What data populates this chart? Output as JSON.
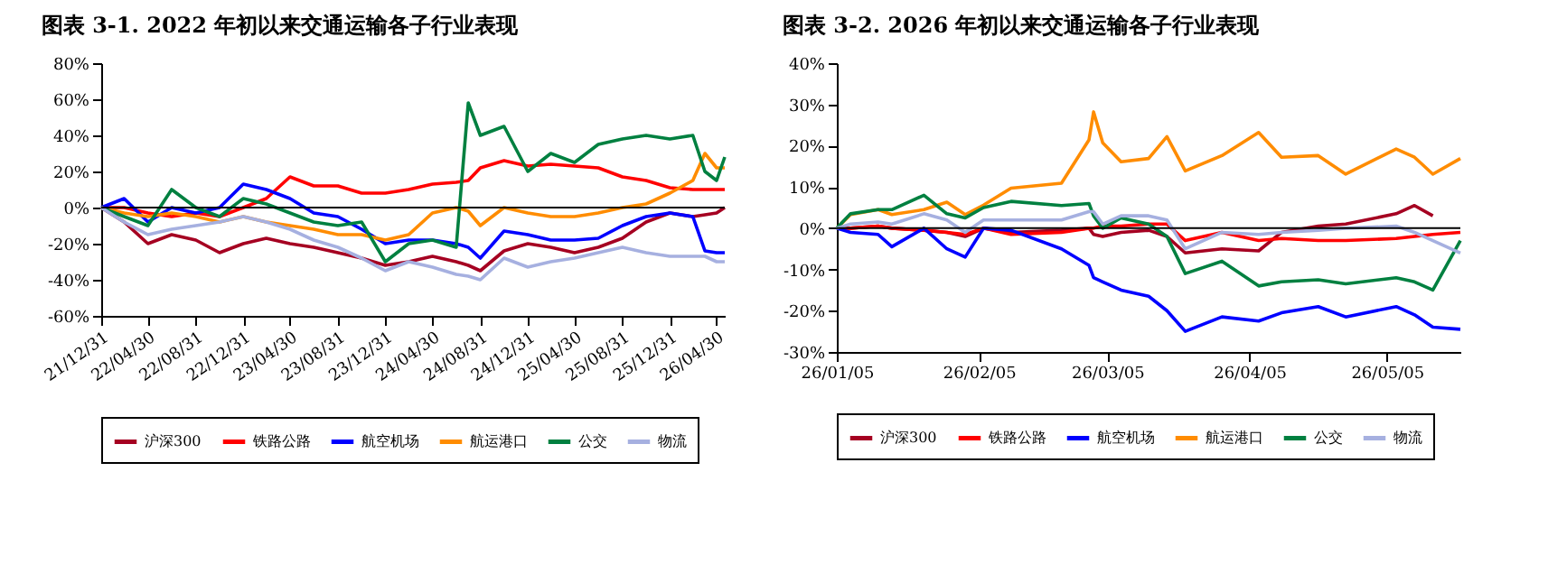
{
  "chart_data": [
    {
      "type": "line",
      "title": "图表 3-1. 2022 年初以来交通运输各子行业表现",
      "x": [
        "2021-12-31",
        "2022-02-28",
        "2022-04-30",
        "2022-06-30",
        "2022-08-31",
        "2022-10-31",
        "2022-12-31",
        "2023-02-28",
        "2023-04-30",
        "2023-06-30",
        "2023-08-31",
        "2023-10-31",
        "2023-12-31",
        "2024-02-29",
        "2024-04-30",
        "2024-06-30",
        "2024-07-31",
        "2024-08-31",
        "2024-10-31",
        "2024-12-31",
        "2025-02-28",
        "2025-04-30",
        "2025-06-30",
        "2025-08-31",
        "2025-10-31",
        "2025-12-31",
        "2026-02-28",
        "2026-03-31",
        "2026-04-30",
        "2026-05-21"
      ],
      "series": [
        {
          "name": "沪深300",
          "color": "#a50021",
          "values": [
            0,
            -8,
            -20,
            -15,
            -18,
            -25,
            -20,
            -17,
            -20,
            -22,
            -25,
            -28,
            -32,
            -30,
            -27,
            -30,
            -32,
            -35,
            -24,
            -20,
            -22,
            -25,
            -22,
            -17,
            -8,
            -3,
            -5,
            -4,
            -3,
            0
          ]
        },
        {
          "name": "铁路公路",
          "color": "#ff0000",
          "values": [
            0,
            0,
            -3,
            -5,
            -3,
            -5,
            0,
            5,
            17,
            12,
            12,
            8,
            8,
            10,
            13,
            14,
            15,
            22,
            26,
            23,
            24,
            23,
            22,
            17,
            15,
            11,
            10,
            10,
            10,
            10
          ]
        },
        {
          "name": "航空机场",
          "color": "#0000ff",
          "values": [
            0,
            5,
            -8,
            0,
            -3,
            0,
            13,
            10,
            5,
            -3,
            -5,
            -12,
            -20,
            -18,
            -18,
            -20,
            -22,
            -28,
            -13,
            -15,
            -18,
            -18,
            -17,
            -10,
            -5,
            -3,
            -5,
            -24,
            -25,
            -25
          ]
        },
        {
          "name": "航运港口",
          "color": "#ff8c00",
          "values": [
            0,
            -3,
            -5,
            -3,
            -5,
            -8,
            -5,
            -8,
            -10,
            -12,
            -15,
            -15,
            -18,
            -15,
            -3,
            0,
            -2,
            -10,
            0,
            -3,
            -5,
            -5,
            -3,
            0,
            2,
            8,
            15,
            30,
            22,
            22
          ]
        },
        {
          "name": "公交",
          "color": "#008040",
          "values": [
            0,
            -5,
            -10,
            10,
            0,
            -5,
            5,
            2,
            -3,
            -8,
            -10,
            -8,
            -30,
            -20,
            -18,
            -22,
            58,
            40,
            45,
            20,
            30,
            25,
            35,
            38,
            40,
            38,
            40,
            20,
            15,
            28
          ]
        },
        {
          "name": "物流",
          "color": "#a6b0e0",
          "values": [
            0,
            -8,
            -15,
            -12,
            -10,
            -8,
            -5,
            -8,
            -12,
            -18,
            -22,
            -28,
            -35,
            -30,
            -33,
            -37,
            -38,
            -40,
            -28,
            -33,
            -30,
            -28,
            -25,
            -22,
            -25,
            -27,
            -27,
            -27,
            -30,
            -30
          ]
        }
      ],
      "xlim": [
        "2021-12-31",
        "2026-05-21"
      ],
      "xticks": [
        {
          "value": "2021-12-31",
          "label": "21/12/31"
        },
        {
          "value": "2022-04-30",
          "label": "22/04/30"
        },
        {
          "value": "2022-08-31",
          "label": "22/08/31"
        },
        {
          "value": "2022-12-31",
          "label": "22/12/31"
        },
        {
          "value": "2023-04-30",
          "label": "23/04/30"
        },
        {
          "value": "2023-08-31",
          "label": "23/08/31"
        },
        {
          "value": "2023-12-31",
          "label": "23/12/31"
        },
        {
          "value": "2024-04-30",
          "label": "24/04/30"
        },
        {
          "value": "2024-08-31",
          "label": "24/08/31"
        },
        {
          "value": "2024-12-31",
          "label": "24/12/31"
        },
        {
          "value": "2025-04-30",
          "label": "25/04/30"
        },
        {
          "value": "2025-08-31",
          "label": "25/08/31"
        },
        {
          "value": "2025-12-31",
          "label": "25/12/31"
        },
        {
          "value": "2026-04-30",
          "label": "26/04/30"
        }
      ],
      "ylim": [
        -60,
        80
      ],
      "yticks": [
        {
          "value": -60,
          "label": "-60%"
        },
        {
          "value": -40,
          "label": "-40%"
        },
        {
          "value": -20,
          "label": "-20%"
        },
        {
          "value": 0,
          "label": "0%"
        },
        {
          "value": 20,
          "label": "20%"
        },
        {
          "value": 40,
          "label": "40%"
        },
        {
          "value": 60,
          "label": "60%"
        },
        {
          "value": 80,
          "label": "80%"
        }
      ],
      "ref_lines": [
        {
          "axis": "y",
          "value": 0,
          "color": "#000000"
        }
      ],
      "grid": false,
      "legend": "bottom"
    },
    {
      "type": "line",
      "title": "图表 3-2. 2026 年初以来交通运输各子行业表现",
      "x": [
        "2026-01-05",
        "2026-01-08",
        "2026-01-14",
        "2026-01-17",
        "2026-01-24",
        "2026-01-29",
        "2026-02-02",
        "2026-02-06",
        "2026-02-12",
        "2026-02-23",
        "2026-03-01",
        "2026-03-02",
        "2026-03-04",
        "2026-03-08",
        "2026-03-14",
        "2026-03-18",
        "2026-03-22",
        "2026-03-30",
        "2026-04-07",
        "2026-04-12",
        "2026-04-20",
        "2026-04-26",
        "2026-05-07",
        "2026-05-11",
        "2026-05-15",
        "2026-05-21"
      ],
      "series": [
        {
          "name": "沪深300",
          "color": "#a50021",
          "values": [
            0,
            0,
            0.5,
            0,
            -0.5,
            -1,
            -2,
            0,
            -1,
            -0.5,
            0,
            -1.5,
            -2,
            -1,
            -0.5,
            -2,
            -6,
            -5,
            -5.5,
            -1,
            0.5,
            1,
            3.5,
            5.5,
            3,
            null
          ]
        },
        {
          "name": "铁路公路",
          "color": "#ff0000",
          "values": [
            0,
            0,
            0.5,
            0,
            -0.5,
            -1,
            -1.5,
            0,
            -1.5,
            -1,
            0,
            0,
            0.5,
            0.5,
            1,
            1,
            -3,
            -1,
            -3,
            -2.5,
            -3,
            -3,
            -2.5,
            -2,
            -1.5,
            -1
          ]
        },
        {
          "name": "航空机场",
          "color": "#0000ff",
          "values": [
            0,
            -1,
            -1.5,
            -4.5,
            0,
            -5,
            -7,
            0,
            -0.5,
            -5,
            -9,
            -12,
            -13,
            -15,
            -16.5,
            -20,
            -25,
            -21.5,
            -22.5,
            -20.5,
            -19,
            -21.5,
            -19,
            -21,
            -24,
            -24.5
          ]
        },
        {
          "name": "航运港口",
          "color": "#ff8c00",
          "values": [
            0,
            3.3,
            4.5,
            3.3,
            4.5,
            6.3,
            3.3,
            5.6,
            9.7,
            10.9,
            21.4,
            28.2,
            20.7,
            16.1,
            16.9,
            22.2,
            13.9,
            17.6,
            23.2,
            17.2,
            17.6,
            13.1,
            19.2,
            17.2,
            13.1,
            16.9
          ]
        },
        {
          "name": "公交",
          "color": "#008040",
          "values": [
            0,
            3.5,
            4.5,
            4.5,
            8,
            3.5,
            2.5,
            5,
            6.5,
            5.5,
            6,
            3,
            0,
            2.5,
            1,
            -2,
            -11,
            -8,
            -14,
            -13,
            -12.5,
            -13.5,
            -12,
            -13,
            -15,
            -3
          ]
        },
        {
          "name": "物流",
          "color": "#a6b0e0",
          "values": [
            0,
            1,
            1.5,
            1,
            3.5,
            2,
            -1,
            2,
            2,
            2,
            4,
            4,
            1,
            3,
            3,
            2,
            -5,
            -1,
            -1.5,
            -1,
            -0.5,
            0,
            0.5,
            -1,
            -3,
            -6
          ]
        }
      ],
      "xlim": [
        "2026-01-05",
        "2026-05-21"
      ],
      "xticks": [
        {
          "value": "2026-01-05",
          "label": "26/01/05"
        },
        {
          "value": "2026-02-05",
          "label": "26/02/05"
        },
        {
          "value": "2026-03-05",
          "label": "26/03/05"
        },
        {
          "value": "2026-04-05",
          "label": "26/04/05"
        },
        {
          "value": "2026-05-05",
          "label": "26/05/05"
        }
      ],
      "ylim": [
        -30,
        40
      ],
      "yticks": [
        {
          "value": -30,
          "label": "-30%"
        },
        {
          "value": -20,
          "label": "-20%"
        },
        {
          "value": -10,
          "label": "-10%"
        },
        {
          "value": 0,
          "label": "0%"
        },
        {
          "value": 10,
          "label": "10%"
        },
        {
          "value": 20,
          "label": "20%"
        },
        {
          "value": 30,
          "label": "30%"
        },
        {
          "value": 40,
          "label": "40%"
        }
      ],
      "ref_lines": [
        {
          "axis": "y",
          "value": 0,
          "color": "#000000"
        }
      ],
      "grid": false,
      "legend": "bottom"
    }
  ]
}
